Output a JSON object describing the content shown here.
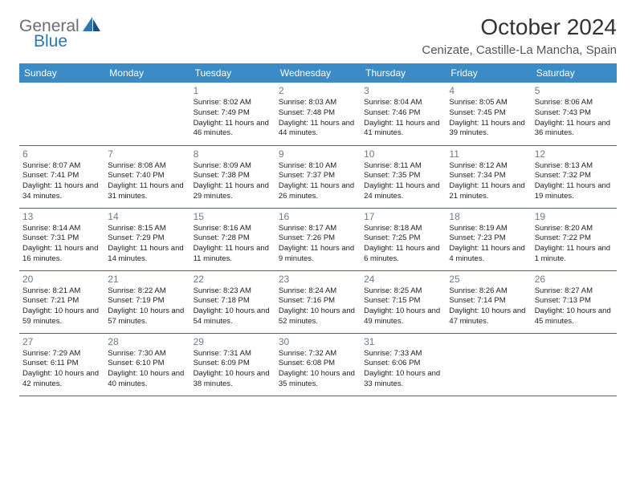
{
  "logo": {
    "general": "General",
    "blue": "Blue"
  },
  "title": "October 2024",
  "location": "Cenizate, Castille-La Mancha, Spain",
  "colors": {
    "header_bg": "#3b8bc6",
    "header_text": "#ffffff",
    "border": "#2e6da4",
    "daynum": "#6b7b8a",
    "body_text": "#222222",
    "logo_gray": "#6d6e71",
    "logo_blue": "#2e75b6"
  },
  "weekdays": [
    "Sunday",
    "Monday",
    "Tuesday",
    "Wednesday",
    "Thursday",
    "Friday",
    "Saturday"
  ],
  "weeks": [
    [
      null,
      null,
      {
        "n": "1",
        "sr": "8:02 AM",
        "ss": "7:49 PM",
        "dl": "11 hours and 46 minutes."
      },
      {
        "n": "2",
        "sr": "8:03 AM",
        "ss": "7:48 PM",
        "dl": "11 hours and 44 minutes."
      },
      {
        "n": "3",
        "sr": "8:04 AM",
        "ss": "7:46 PM",
        "dl": "11 hours and 41 minutes."
      },
      {
        "n": "4",
        "sr": "8:05 AM",
        "ss": "7:45 PM",
        "dl": "11 hours and 39 minutes."
      },
      {
        "n": "5",
        "sr": "8:06 AM",
        "ss": "7:43 PM",
        "dl": "11 hours and 36 minutes."
      }
    ],
    [
      {
        "n": "6",
        "sr": "8:07 AM",
        "ss": "7:41 PM",
        "dl": "11 hours and 34 minutes."
      },
      {
        "n": "7",
        "sr": "8:08 AM",
        "ss": "7:40 PM",
        "dl": "11 hours and 31 minutes."
      },
      {
        "n": "8",
        "sr": "8:09 AM",
        "ss": "7:38 PM",
        "dl": "11 hours and 29 minutes."
      },
      {
        "n": "9",
        "sr": "8:10 AM",
        "ss": "7:37 PM",
        "dl": "11 hours and 26 minutes."
      },
      {
        "n": "10",
        "sr": "8:11 AM",
        "ss": "7:35 PM",
        "dl": "11 hours and 24 minutes."
      },
      {
        "n": "11",
        "sr": "8:12 AM",
        "ss": "7:34 PM",
        "dl": "11 hours and 21 minutes."
      },
      {
        "n": "12",
        "sr": "8:13 AM",
        "ss": "7:32 PM",
        "dl": "11 hours and 19 minutes."
      }
    ],
    [
      {
        "n": "13",
        "sr": "8:14 AM",
        "ss": "7:31 PM",
        "dl": "11 hours and 16 minutes."
      },
      {
        "n": "14",
        "sr": "8:15 AM",
        "ss": "7:29 PM",
        "dl": "11 hours and 14 minutes."
      },
      {
        "n": "15",
        "sr": "8:16 AM",
        "ss": "7:28 PM",
        "dl": "11 hours and 11 minutes."
      },
      {
        "n": "16",
        "sr": "8:17 AM",
        "ss": "7:26 PM",
        "dl": "11 hours and 9 minutes."
      },
      {
        "n": "17",
        "sr": "8:18 AM",
        "ss": "7:25 PM",
        "dl": "11 hours and 6 minutes."
      },
      {
        "n": "18",
        "sr": "8:19 AM",
        "ss": "7:23 PM",
        "dl": "11 hours and 4 minutes."
      },
      {
        "n": "19",
        "sr": "8:20 AM",
        "ss": "7:22 PM",
        "dl": "11 hours and 1 minute."
      }
    ],
    [
      {
        "n": "20",
        "sr": "8:21 AM",
        "ss": "7:21 PM",
        "dl": "10 hours and 59 minutes."
      },
      {
        "n": "21",
        "sr": "8:22 AM",
        "ss": "7:19 PM",
        "dl": "10 hours and 57 minutes."
      },
      {
        "n": "22",
        "sr": "8:23 AM",
        "ss": "7:18 PM",
        "dl": "10 hours and 54 minutes."
      },
      {
        "n": "23",
        "sr": "8:24 AM",
        "ss": "7:16 PM",
        "dl": "10 hours and 52 minutes."
      },
      {
        "n": "24",
        "sr": "8:25 AM",
        "ss": "7:15 PM",
        "dl": "10 hours and 49 minutes."
      },
      {
        "n": "25",
        "sr": "8:26 AM",
        "ss": "7:14 PM",
        "dl": "10 hours and 47 minutes."
      },
      {
        "n": "26",
        "sr": "8:27 AM",
        "ss": "7:13 PM",
        "dl": "10 hours and 45 minutes."
      }
    ],
    [
      {
        "n": "27",
        "sr": "7:29 AM",
        "ss": "6:11 PM",
        "dl": "10 hours and 42 minutes."
      },
      {
        "n": "28",
        "sr": "7:30 AM",
        "ss": "6:10 PM",
        "dl": "10 hours and 40 minutes."
      },
      {
        "n": "29",
        "sr": "7:31 AM",
        "ss": "6:09 PM",
        "dl": "10 hours and 38 minutes."
      },
      {
        "n": "30",
        "sr": "7:32 AM",
        "ss": "6:08 PM",
        "dl": "10 hours and 35 minutes."
      },
      {
        "n": "31",
        "sr": "7:33 AM",
        "ss": "6:06 PM",
        "dl": "10 hours and 33 minutes."
      },
      null,
      null
    ]
  ],
  "labels": {
    "sunrise": "Sunrise:",
    "sunset": "Sunset:",
    "daylight": "Daylight:"
  }
}
